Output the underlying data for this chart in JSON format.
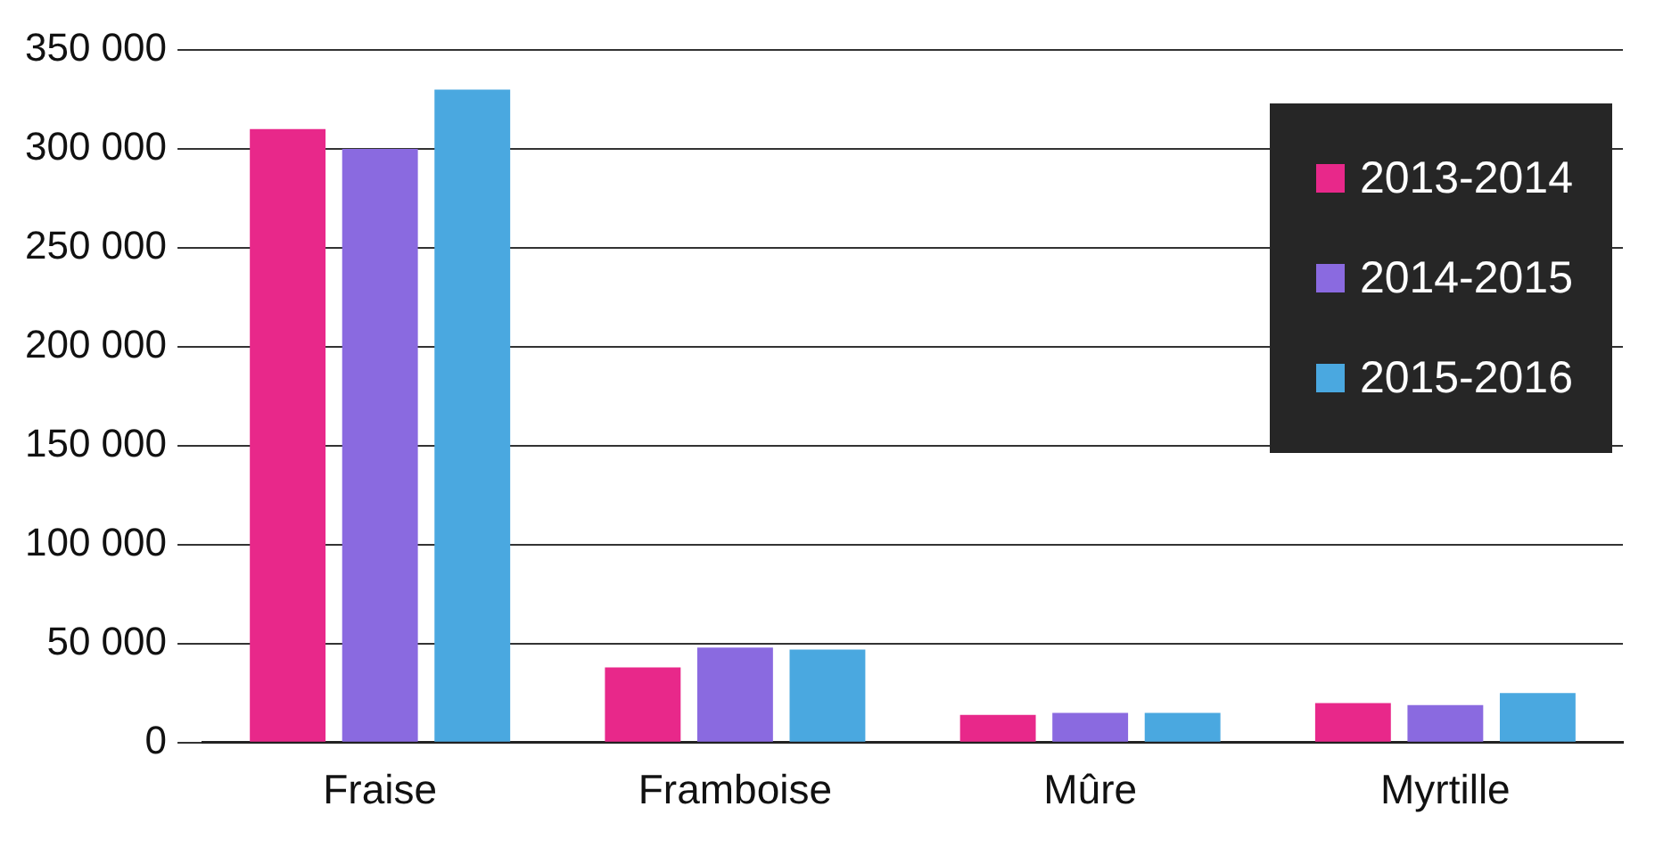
{
  "chart_data": {
    "type": "bar",
    "categories": [
      "Fraise",
      "Framboise",
      "Mûre",
      "Myrtille"
    ],
    "series": [
      {
        "name": "2013-2014",
        "color": "#e8288a",
        "values": [
          310000,
          38000,
          14000,
          20000
        ]
      },
      {
        "name": "2014-2015",
        "color": "#8a6ae0",
        "values": [
          300000,
          48000,
          15000,
          19000
        ]
      },
      {
        "name": "2015-2016",
        "color": "#4aa8e0",
        "values": [
          330000,
          47000,
          15000,
          25000
        ]
      }
    ],
    "ylim": [
      0,
      350000
    ],
    "yticks": [
      {
        "value": 0,
        "label": "0"
      },
      {
        "value": 50000,
        "label": "50 000"
      },
      {
        "value": 100000,
        "label": "100 000"
      },
      {
        "value": 150000,
        "label": "150 000"
      },
      {
        "value": 200000,
        "label": "200 000"
      },
      {
        "value": 250000,
        "label": "250 000"
      },
      {
        "value": 300000,
        "label": "300 000"
      },
      {
        "value": 350000,
        "label": "350 000"
      }
    ],
    "grid": "y",
    "legend": "top right"
  }
}
